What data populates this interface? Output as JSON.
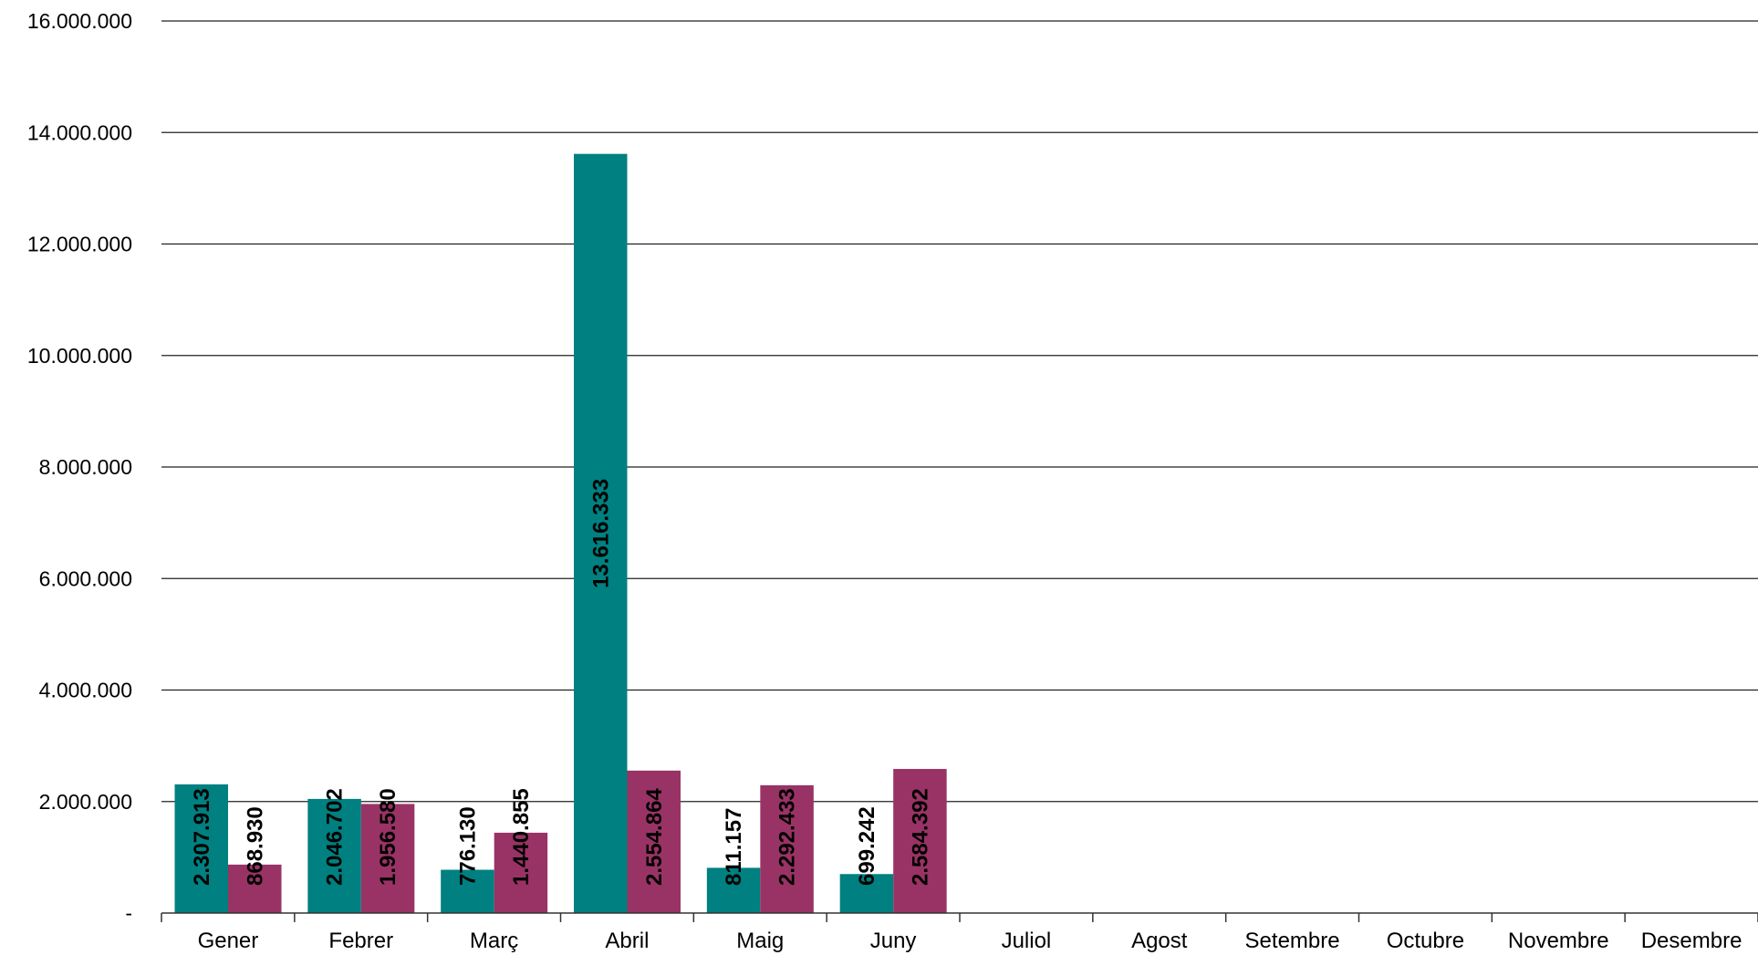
{
  "chart_data": {
    "type": "bar",
    "title": "",
    "xlabel": "",
    "ylabel": "",
    "categories": [
      "Gener",
      "Febrer",
      "Març",
      "Abril",
      "Maig",
      "Juny",
      "Juliol",
      "Agost",
      "Setembre",
      "Octubre",
      "Novembre",
      "Desembre"
    ],
    "series": [
      {
        "color": "#008080",
        "values": [
          2307913,
          2046702,
          776130,
          13616333,
          811157,
          699242,
          null,
          null,
          null,
          null,
          null,
          null
        ]
      },
      {
        "color": "#993366",
        "values": [
          868930,
          1956580,
          1440855,
          2554864,
          2292433,
          2584392,
          null,
          null,
          null,
          null,
          null,
          null
        ]
      }
    ],
    "data_labels": [
      [
        "2.307.913",
        "2.046.702",
        "776.130",
        "13.616.333",
        "811.157",
        "699.242"
      ],
      [
        "868.930",
        "1.956.580",
        "1.440.855",
        "2.554.864",
        "2.292.433",
        "2.584.392"
      ]
    ],
    "ylim": [
      0,
      16000000
    ],
    "yticks": [
      0,
      2000000,
      4000000,
      6000000,
      8000000,
      10000000,
      12000000,
      14000000,
      16000000
    ],
    "ytick_labels": [
      "-",
      "2.000.000",
      "4.000.000",
      "6.000.000",
      "8.000.000",
      "10.000.000",
      "12.000.000",
      "14.000.000",
      "16.000.000"
    ],
    "grid": true,
    "legend": "none"
  }
}
